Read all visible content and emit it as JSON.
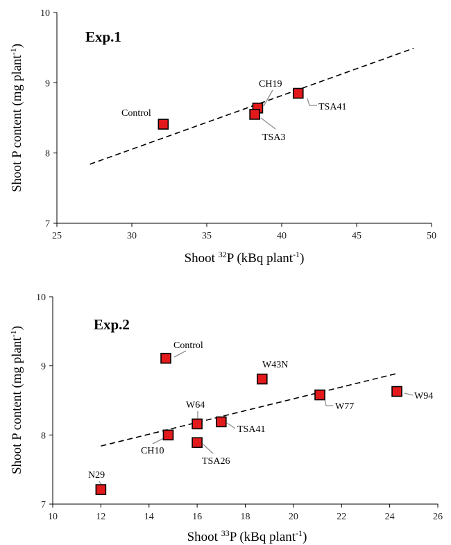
{
  "colors": {
    "marker_fill": "#e31a1c",
    "marker_stroke": "#000000",
    "leader": "#8c8c8c"
  },
  "chart_data": [
    {
      "type": "scatter",
      "title": "Exp.1",
      "xlabel": {
        "main": "Shoot ",
        "sup": "32",
        "rest": "P (kBq plant",
        "sup2": "-1",
        "end": ")"
      },
      "ylabel": {
        "main": "Shoot P content (mg plant",
        "sup": "-1",
        "end": ")"
      },
      "xlim": [
        25,
        50
      ],
      "ylim": [
        7,
        10
      ],
      "xticks": [
        "25",
        "30",
        "35",
        "40",
        "45",
        "50"
      ],
      "yticks": [
        "7",
        "8",
        "9",
        "10"
      ],
      "trendline": {
        "x": [
          27.2,
          48.8
        ],
        "y": [
          7.84,
          9.49
        ]
      },
      "points": [
        {
          "label": "Control",
          "x": 32.1,
          "y": 8.41
        },
        {
          "label": "CH19",
          "x": 38.4,
          "y": 8.64
        },
        {
          "label": "TSA3",
          "x": 38.2,
          "y": 8.55
        },
        {
          "label": "TSA41",
          "x": 41.1,
          "y": 8.85
        }
      ]
    },
    {
      "type": "scatter",
      "title": "Exp.2",
      "xlabel": {
        "main": "Shoot ",
        "sup": "33",
        "rest": "P (kBq plant",
        "sup2": "-1",
        "end": ")"
      },
      "ylabel": {
        "main": "Shoot P content (mg plant",
        "sup": "-1",
        "end": ")"
      },
      "xlim": [
        10,
        26
      ],
      "ylim": [
        7,
        10
      ],
      "xticks": [
        "10",
        "12",
        "14",
        "16",
        "18",
        "20",
        "22",
        "24",
        "26"
      ],
      "yticks": [
        "7",
        "8",
        "9",
        "10"
      ],
      "trendline": {
        "x": [
          12.0,
          24.3
        ],
        "y": [
          7.84,
          8.89
        ]
      },
      "points": [
        {
          "label": "Control",
          "x": 14.7,
          "y": 9.11
        },
        {
          "label": "W43N",
          "x": 18.7,
          "y": 8.81
        },
        {
          "label": "W64",
          "x": 16.0,
          "y": 8.16
        },
        {
          "label": "TSA41",
          "x": 17.0,
          "y": 8.19
        },
        {
          "label": "CH10",
          "x": 14.8,
          "y": 8.0
        },
        {
          "label": "TSA26",
          "x": 16.0,
          "y": 7.89
        },
        {
          "label": "W77",
          "x": 21.1,
          "y": 8.58
        },
        {
          "label": "W94",
          "x": 24.3,
          "y": 8.63
        },
        {
          "label": "N29",
          "x": 12.0,
          "y": 7.21
        }
      ]
    }
  ]
}
